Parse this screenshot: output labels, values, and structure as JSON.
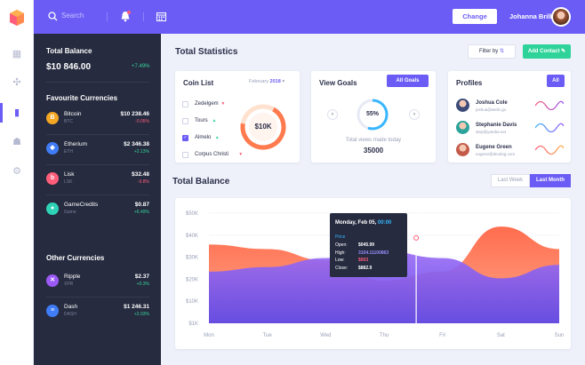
{
  "topbar": {
    "search_placeholder": "Search",
    "change_label": "Change",
    "user_name": "Johanna Brill"
  },
  "balance": {
    "title": "Total Balance",
    "value": "$10 846.00",
    "change": "+7.49%"
  },
  "favourites": {
    "title": "Favourite Currencies",
    "items": [
      {
        "name": "Bitcoin",
        "ticker": "BTC",
        "value": "$10 238.46",
        "change": "-0.05%",
        "dir": "dn",
        "color": "#f5a623",
        "glyph": "B"
      },
      {
        "name": "Etherium",
        "ticker": "ETH",
        "value": "$2 346.38",
        "change": "+2.13%",
        "dir": "up",
        "color": "#3f7cf5",
        "glyph": "◆"
      },
      {
        "name": "Lisk",
        "ticker": "LSK",
        "value": "$32.48",
        "change": "-0.8%",
        "dir": "dn",
        "color": "#ff5d7a",
        "glyph": "b"
      },
      {
        "name": "GameCredits",
        "ticker": "Game",
        "value": "$0.87",
        "change": "+6.49%",
        "dir": "up",
        "color": "#2ed3b7",
        "glyph": "●"
      }
    ]
  },
  "others": {
    "title": "Other Currencies",
    "items": [
      {
        "name": "Ripple",
        "ticker": "XPR",
        "value": "$2.37",
        "change": "+0.3%",
        "dir": "up",
        "color": "#9b59f5",
        "glyph": "✕"
      },
      {
        "name": "Dash",
        "ticker": "DASH",
        "value": "$1 246.31",
        "change": "+2.03%",
        "dir": "up",
        "color": "#3f7cf5",
        "glyph": "≡"
      }
    ]
  },
  "main": {
    "title": "Total Statistics",
    "filter_label": "Filter by",
    "add_label": "Add Contact"
  },
  "coin_list": {
    "title": "Coin List",
    "month": "February",
    "year": "2018",
    "items": [
      {
        "name": "Zedelgem",
        "checked": false,
        "dir": "dn"
      },
      {
        "name": "Tours",
        "checked": false,
        "dir": "up"
      },
      {
        "name": "Almelo",
        "checked": true,
        "dir": "up"
      },
      {
        "name": "Corpus Christi",
        "checked": false,
        "dir": "dn"
      }
    ],
    "donut_value": "$10K"
  },
  "goals": {
    "title": "View Goals",
    "button": "All Goals",
    "percent": "55%",
    "caption": "Total views made today",
    "value": "35000",
    "progress": 0.55
  },
  "profiles": {
    "title": "Profiles",
    "button": "All",
    "items": [
      {
        "name": "Joshua Cole",
        "email": "joshua@weliz.go"
      },
      {
        "name": "Stephanie Davis",
        "email": "step@yamba.net"
      },
      {
        "name": "Eugene Green",
        "email": "eugene@devdog.com"
      }
    ]
  },
  "chart": {
    "title": "Total Balance",
    "last_week": "Last Week",
    "last_month": "Last Month",
    "tooltip": {
      "date": "Monday, Feb 05,",
      "time": "00:00",
      "section": "Price",
      "rows": [
        {
          "label": "Open:",
          "value": "$045.99",
          "color": "#ffffff"
        },
        {
          "label": "High:",
          "value": "3104.11100863",
          "color": "#9b8cff"
        },
        {
          "label": "Low:",
          "value": "$003",
          "color": "#ff5d7a"
        },
        {
          "label": "Close:",
          "value": "$882.9",
          "color": "#ffffff"
        }
      ]
    }
  },
  "chart_data": {
    "type": "area",
    "title": "",
    "xlabel": "",
    "ylabel": "",
    "categories": [
      "Mon",
      "Tue",
      "Wed",
      "Thu",
      "Fri",
      "Sat",
      "Sun"
    ],
    "yticks": [
      "$50K",
      "$40K",
      "$30K",
      "$20K",
      "$10K",
      "$1K"
    ],
    "ylim": [
      1,
      50
    ],
    "series": [
      {
        "values": [
          36,
          34,
          29,
          20,
          24,
          44,
          34
        ],
        "color": "#ff6d4e"
      },
      {
        "values": [
          24,
          26,
          30,
          33,
          30,
          21,
          27
        ],
        "color": "#7b5cf5"
      }
    ]
  }
}
